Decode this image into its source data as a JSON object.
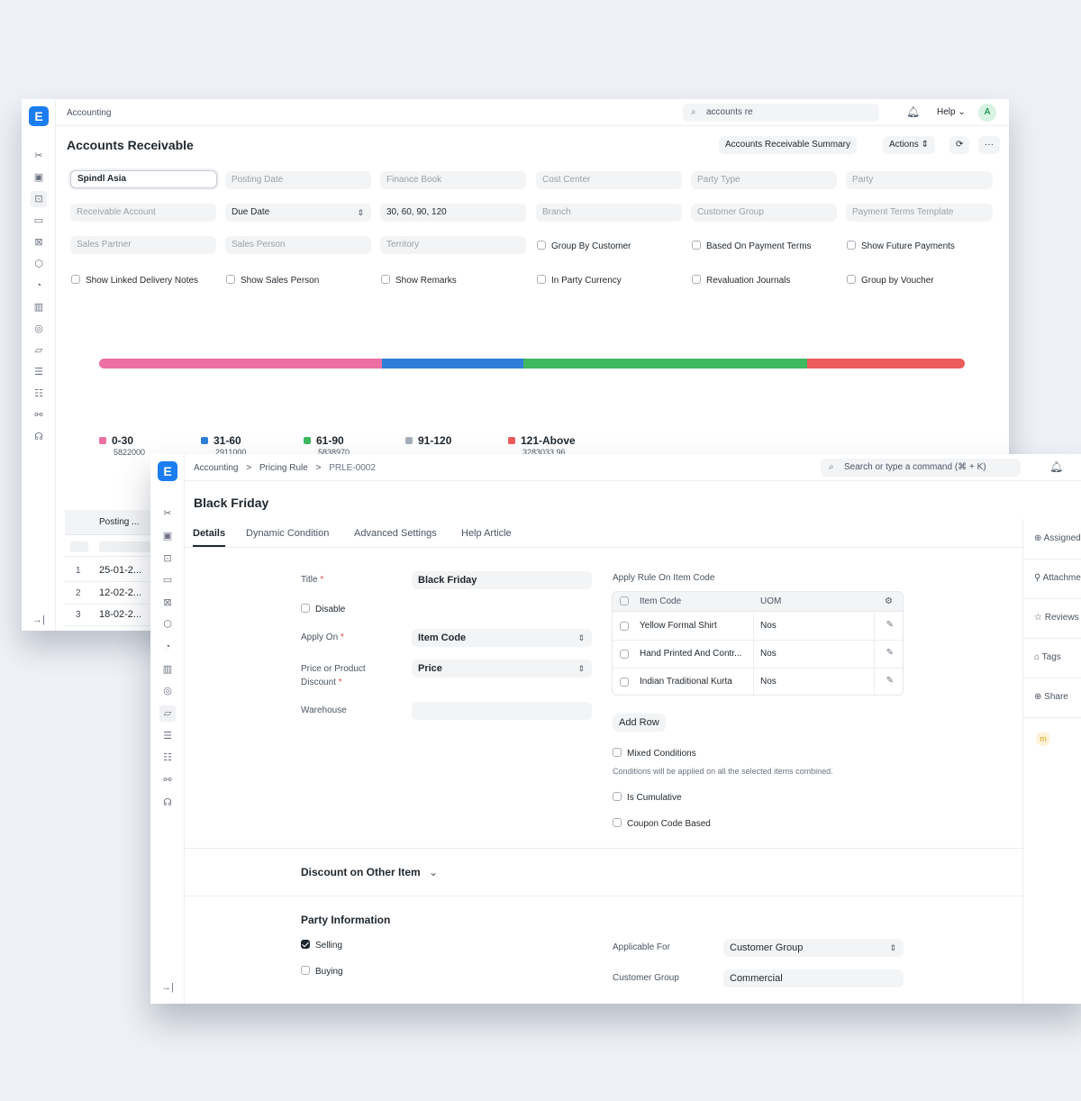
{
  "win1": {
    "breadcrumb": "Accounting",
    "search_value": "accounts re",
    "help_label": "Help",
    "avatar_initial": "A",
    "page_title": "Accounts Receivable",
    "buttons": {
      "summary": "Accounts Receivable Summary",
      "actions": "Actions",
      "refresh": "⟳",
      "more": "···"
    },
    "filters": {
      "company": "Spindl Asia",
      "posting_date": "Posting Date",
      "finance_book": "Finance Book",
      "cost_center": "Cost Center",
      "party_type": "Party Type",
      "party": "Party",
      "receivable_account": "Receivable Account",
      "ageing_based_on": "Due Date",
      "ageing_range": "30, 60, 90, 120",
      "branch": "Branch",
      "customer_group": "Customer Group",
      "payment_terms_template": "Payment Terms Template",
      "sales_partner": "Sales Partner",
      "sales_person": "Sales Person",
      "territory": "Territory"
    },
    "checks": {
      "group_by_customer": "Group By Customer",
      "based_on_payment_terms": "Based On Payment Terms",
      "show_future_payments": "Show Future Payments",
      "show_linked_delivery_notes": "Show Linked Delivery Notes",
      "show_sales_person": "Show Sales Person",
      "show_remarks": "Show Remarks",
      "in_party_currency": "In Party Currency",
      "revaluation_journals": "Revaluation Journals",
      "group_by_voucher": "Group by Voucher"
    },
    "chart": {
      "segments": [
        {
          "label": "0-30",
          "value": "5822000",
          "share": 0.327,
          "color": "#ec6fa3"
        },
        {
          "label": "31-60",
          "value": "2911000",
          "share": 0.163,
          "color": "#2f7fd8"
        },
        {
          "label": "61-90",
          "value": "5838970",
          "share": 0.328,
          "color": "#3fb860"
        },
        {
          "label": "91-120",
          "value": "",
          "share": 0.0,
          "color": "#a6afb8"
        },
        {
          "label": "121-Above",
          "value": "3283033.96",
          "share": 0.182,
          "color": "#ee5b5b"
        }
      ]
    },
    "grid": {
      "header": "Posting ...",
      "rows": [
        {
          "idx": "1",
          "date": "25-01-2..."
        },
        {
          "idx": "2",
          "date": "12-02-2..."
        },
        {
          "idx": "3",
          "date": "18-02-2..."
        }
      ]
    }
  },
  "win2": {
    "breadcrumb": {
      "a": "Accounting",
      "b": "Pricing Rule",
      "c": "PRLE-0002",
      "sep": ">"
    },
    "search_placeholder": "Search or type a command (⌘ + K)",
    "page_title": "Black Friday",
    "tabs": [
      "Details",
      "Dynamic Condition",
      "Advanced Settings",
      "Help Article"
    ],
    "form": {
      "title_label": "Title",
      "title_value": "Black Friday",
      "disable_label": "Disable",
      "apply_on_label": "Apply On",
      "apply_on_value": "Item Code",
      "price_or_discount_label_1": "Price or Product",
      "price_or_discount_label_2": "Discount",
      "price_or_discount_value": "Price",
      "warehouse_label": "Warehouse",
      "required_mark": "*"
    },
    "item_table": {
      "label": "Apply Rule On Item Code",
      "col_item": "Item Code",
      "col_uom": "UOM",
      "rows": [
        {
          "item": "Yellow Formal Shirt",
          "uom": "Nos"
        },
        {
          "item": "Hand Printed And Contr...",
          "uom": "Nos"
        },
        {
          "item": "Indian Traditional Kurta",
          "uom": "Nos"
        }
      ],
      "add_row": "Add Row"
    },
    "conditions": {
      "mixed": "Mixed Conditions",
      "mixed_help": "Conditions will be applied on all the selected items combined.",
      "cumulative": "Is Cumulative",
      "coupon": "Coupon Code Based"
    },
    "sections": {
      "discount_other": "Discount on Other Item",
      "party_info": "Party Information"
    },
    "party": {
      "selling": "Selling",
      "buying": "Buying",
      "applicable_for_label": "Applicable For",
      "applicable_for_value": "Customer Group",
      "customer_group_label": "Customer Group",
      "customer_group_value": "Commercial"
    },
    "right_sidebar": [
      "Assigned To",
      "Attachments",
      "Reviews",
      "Tags",
      "Share"
    ],
    "right_sidebar_avatar": "m"
  }
}
